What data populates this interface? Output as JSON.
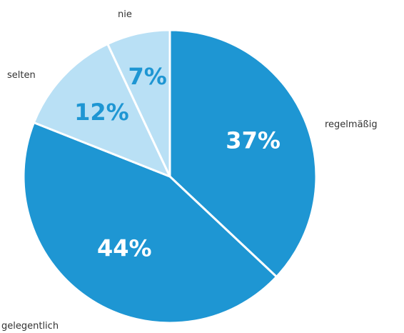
{
  "chart_data": {
    "type": "pie",
    "slices": [
      {
        "label": "regelmäßig",
        "value": 37,
        "value_label": "37%",
        "color": "#1e96d3",
        "text_color": "#ffffff"
      },
      {
        "label": "gelegentlich",
        "value": 44,
        "value_label": "44%",
        "color": "#1e96d3",
        "text_color": "#ffffff"
      },
      {
        "label": "selten",
        "value": 12,
        "value_label": "12%",
        "color": "#b9e0f5",
        "text_color": "#1e96d3"
      },
      {
        "label": "nie",
        "value": 7,
        "value_label": "7%",
        "color": "#b9e0f5",
        "text_color": "#1e96d3"
      }
    ],
    "start": "12 o'clock",
    "direction": "clockwise",
    "separator_color": "#ffffff"
  }
}
